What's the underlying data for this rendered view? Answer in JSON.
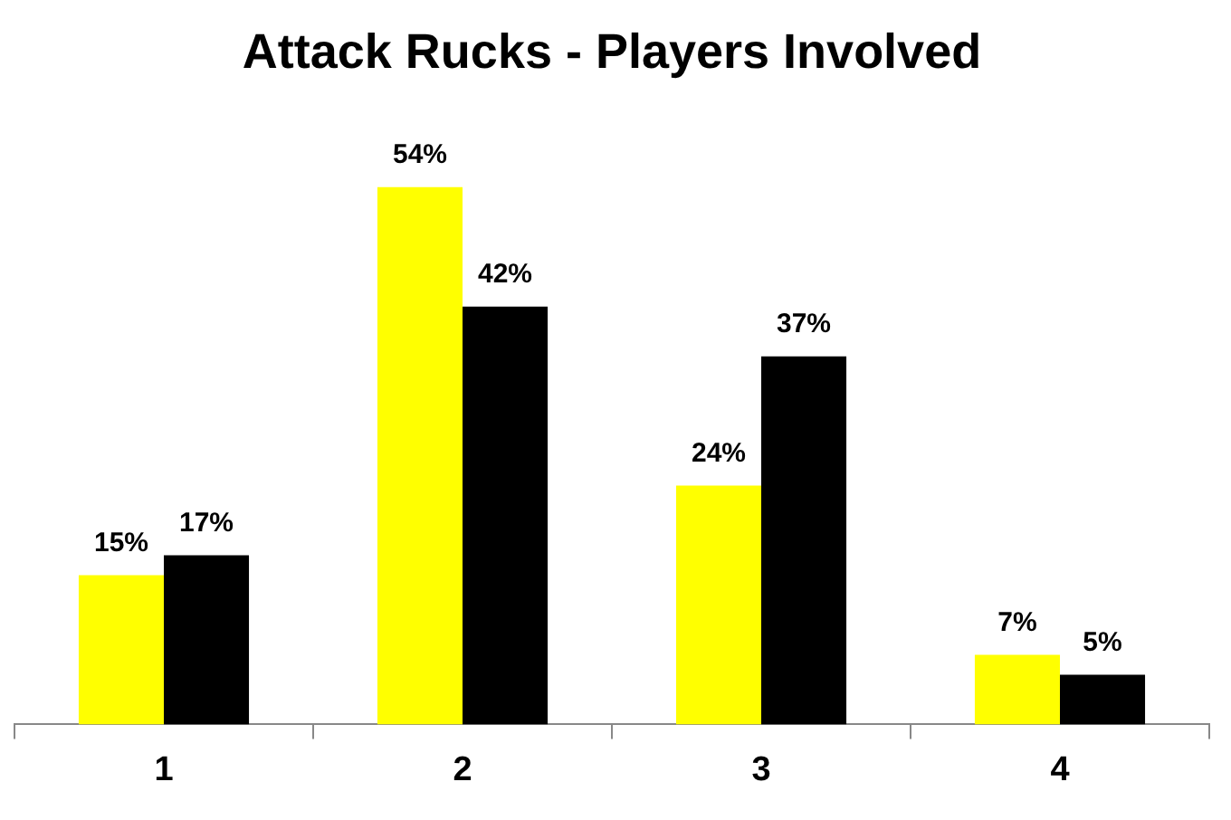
{
  "chart_data": {
    "type": "bar",
    "title": "Attack Rucks - Players Involved",
    "categories": [
      "1",
      "2",
      "3",
      "4"
    ],
    "series": [
      {
        "color": "#ffff00",
        "values": [
          15,
          54,
          24,
          7
        ],
        "value_labels": [
          "15%",
          "54%",
          "24%",
          "7%"
        ]
      },
      {
        "color": "#000000",
        "values": [
          17,
          42,
          37,
          5
        ],
        "value_labels": [
          "17%",
          "42%",
          "37%",
          "5%"
        ]
      }
    ],
    "tick_labels": "x",
    "grid": false,
    "legend": false
  }
}
